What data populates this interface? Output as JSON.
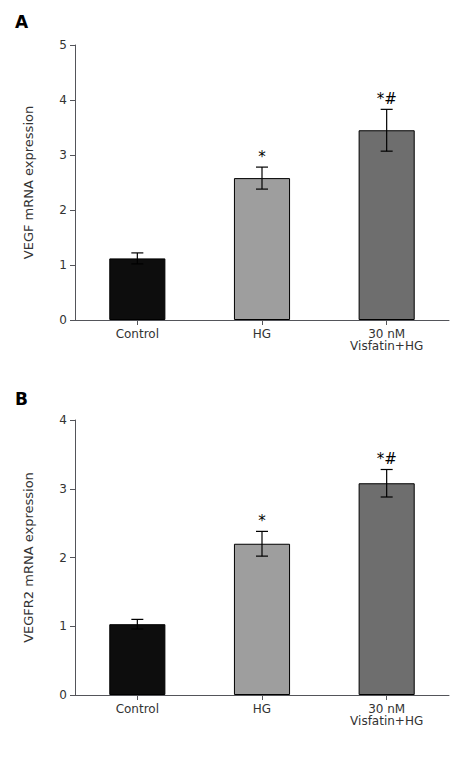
{
  "chart_data": [
    {
      "type": "bar",
      "title": "A",
      "categories": [
        "Control",
        "HG",
        "30 nM\nVisfatin+HG"
      ],
      "values": [
        1.12,
        2.58,
        3.45
      ],
      "errors": [
        0.1,
        0.2,
        0.38
      ],
      "colors": [
        "#0d0d0d",
        "#9e9e9e",
        "#6e6e6e"
      ],
      "ylabel": "VEGF mRNA expression",
      "ylim": [
        0,
        5
      ],
      "yticks": [
        0,
        1,
        2,
        3,
        4,
        5
      ],
      "annotations": [
        {
          "category": "HG",
          "text": "*"
        },
        {
          "category": "30 nM\nVisfatin+HG",
          "text": "*#"
        }
      ],
      "grid": false
    },
    {
      "type": "bar",
      "title": "B",
      "categories": [
        "Control",
        "HG",
        "30 nM\nVisfatin+HG"
      ],
      "values": [
        1.03,
        2.2,
        3.08
      ],
      "errors": [
        0.07,
        0.18,
        0.2
      ],
      "colors": [
        "#0d0d0d",
        "#9e9e9e",
        "#6e6e6e"
      ],
      "ylabel": "VEGFR2 mRNA expression",
      "ylim": [
        0,
        4
      ],
      "yticks": [
        0,
        1,
        2,
        3,
        4
      ],
      "annotations": [
        {
          "category": "HG",
          "text": "*"
        },
        {
          "category": "30 nM\nVisfatin+HG",
          "text": "*#"
        }
      ],
      "grid": false
    }
  ]
}
